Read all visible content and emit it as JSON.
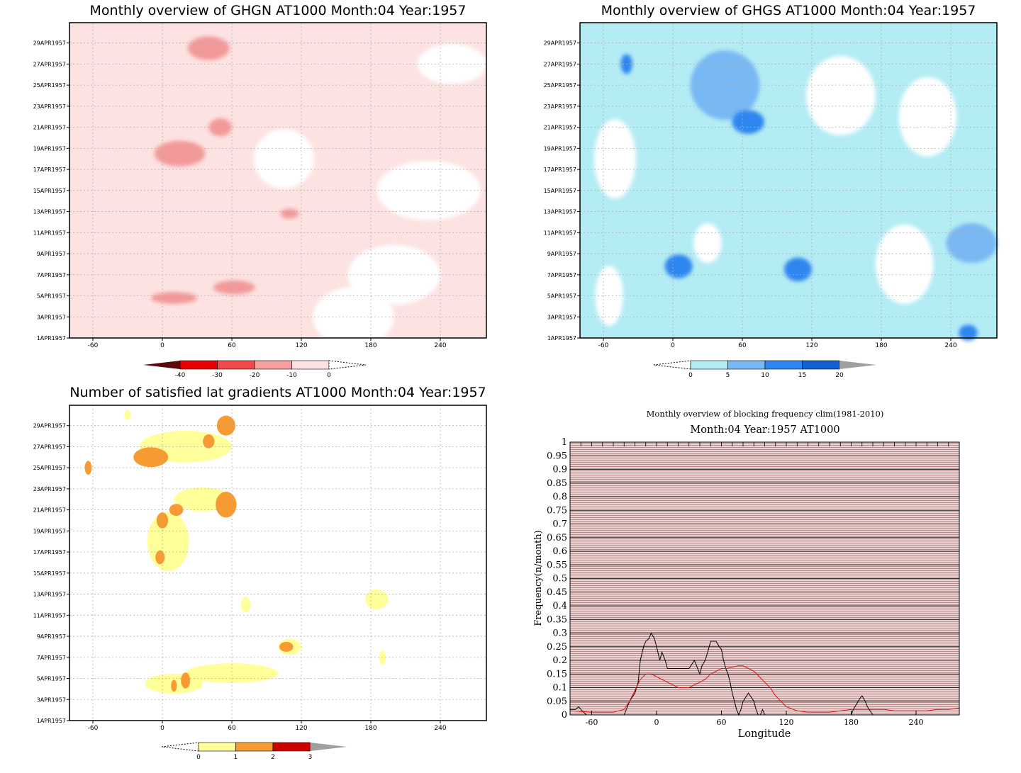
{
  "date_labels": [
    "1APR1957",
    "3APR1957",
    "5APR1957",
    "7APR1957",
    "9APR1957",
    "11APR1957",
    "13APR1957",
    "15APR1957",
    "17APR1957",
    "19APR1957",
    "21APR1957",
    "23APR1957",
    "25APR1957",
    "27APR1957",
    "29APR1957"
  ],
  "lon_ticks": [
    -60,
    0,
    60,
    120,
    180,
    240
  ],
  "chart_data": [
    {
      "type": "heatmap",
      "id": "ghgn",
      "title": "Monthly overview of GHGN AT1000 Month:04 Year:1957",
      "xlim": [
        -75,
        285
      ],
      "x_ticks": [
        "-60",
        "0",
        "60",
        "120",
        "180",
        "240"
      ],
      "colorbar": {
        "ticks": [
          "-40",
          "-30",
          "-20",
          "-10",
          "0"
        ],
        "colors": [
          "#5a0a0a",
          "#e60000",
          "#f24a4a",
          "#f7a0a0",
          "#fde2e2"
        ]
      },
      "blobs": [
        {
          "lon": 40,
          "day": 28.5,
          "rx": 18,
          "ry": 1.2,
          "value": -15
        },
        {
          "lon": 15,
          "day": 18.5,
          "rx": 22,
          "ry": 1.3,
          "value": -15
        },
        {
          "lon": 50,
          "day": 21,
          "rx": 10,
          "ry": 0.9,
          "value": -15
        },
        {
          "lon": 110,
          "day": 12.8,
          "rx": 8,
          "ry": 0.5,
          "value": -15
        },
        {
          "lon": 10,
          "day": 4.8,
          "rx": 20,
          "ry": 0.6,
          "value": -15
        },
        {
          "lon": 62,
          "day": 5.8,
          "rx": 18,
          "ry": 0.7,
          "value": -15
        }
      ]
    },
    {
      "type": "heatmap",
      "id": "ghgs",
      "title": "Monthly overview of GHGS AT1000 Month:04 Year:1957",
      "xlim": [
        -75,
        285
      ],
      "x_ticks": [
        "-60",
        "0",
        "60",
        "120",
        "180",
        "240"
      ],
      "colorbar": {
        "ticks": [
          "0",
          "5",
          "10",
          "15",
          "20"
        ],
        "colors": [
          "#b4ecf4",
          "#78b8f4",
          "#2f86ee",
          "#1560cf"
        ]
      },
      "blobs": [
        {
          "lon": 45,
          "day": 25,
          "rx": 30,
          "ry": 3.5,
          "value": 10
        },
        {
          "lon": 65,
          "day": 21.5,
          "rx": 14,
          "ry": 1.2,
          "value": 15
        },
        {
          "lon": -40,
          "day": 27,
          "rx": 5,
          "ry": 1,
          "value": 15
        },
        {
          "lon": 5,
          "day": 7.8,
          "rx": 12,
          "ry": 1.2,
          "value": 15
        },
        {
          "lon": 108,
          "day": 7.5,
          "rx": 12,
          "ry": 1.2,
          "value": 15
        },
        {
          "lon": 258,
          "day": 10,
          "rx": 22,
          "ry": 2,
          "value": 10
        },
        {
          "lon": 255,
          "day": 1.5,
          "rx": 8,
          "ry": 0.8,
          "value": 15
        }
      ]
    },
    {
      "type": "heatmap",
      "id": "latgrad",
      "title": "Number of satisfied lat gradients AT1000 Month:04 Year:1957",
      "xlim": [
        -75,
        285
      ],
      "x_ticks": [
        "-60",
        "0",
        "60",
        "120",
        "180",
        "240"
      ],
      "colorbar": {
        "ticks": [
          "0",
          "1",
          "2",
          "3"
        ],
        "colors": [
          "#ffff99",
          "#f69a31",
          "#cc0000"
        ]
      },
      "blobs": [
        {
          "lon": 55,
          "day": 29,
          "rx": 8,
          "ry": 1,
          "value": 2
        },
        {
          "lon": 40,
          "day": 27.5,
          "rx": 5,
          "ry": 0.7,
          "value": 2
        },
        {
          "lon": -10,
          "day": 26,
          "rx": 15,
          "ry": 1,
          "value": 2
        },
        {
          "lon": -64,
          "day": 25,
          "rx": 3,
          "ry": 0.7,
          "value": 2
        },
        {
          "lon": 55,
          "day": 21.5,
          "rx": 9,
          "ry": 1.3,
          "value": 2
        },
        {
          "lon": 12,
          "day": 21,
          "rx": 6,
          "ry": 0.6,
          "value": 2
        },
        {
          "lon": 0,
          "day": 20,
          "rx": 5,
          "ry": 0.8,
          "value": 2
        },
        {
          "lon": -2,
          "day": 16.5,
          "rx": 4,
          "ry": 0.7,
          "value": 2
        },
        {
          "lon": 107,
          "day": 8,
          "rx": 6,
          "ry": 0.5,
          "value": 2
        },
        {
          "lon": 20,
          "day": 4.8,
          "rx": 4,
          "ry": 0.8,
          "value": 2
        },
        {
          "lon": 10,
          "day": 4.3,
          "rx": 2.5,
          "ry": 0.6,
          "value": 2
        }
      ]
    },
    {
      "type": "line",
      "id": "freq",
      "title": "Monthly overview of blocking frequency clim(1981-2010)",
      "subtitle": "Month:04 Year:1957  AT1000",
      "xlabel": "Longitude",
      "ylabel": "Frequency(n/month)",
      "xlim": [
        -80,
        280
      ],
      "ylim": [
        0,
        1
      ],
      "x_ticks": [
        "-60",
        "0",
        "60",
        "120",
        "180",
        "240"
      ],
      "y_ticks": [
        "0",
        "0.05",
        "0.1",
        "0.15",
        "0.2",
        "0.25",
        "0.3",
        "0.35",
        "0.4",
        "0.45",
        "0.5",
        "0.55",
        "0.6",
        "0.65",
        "0.7",
        "0.75",
        "0.8",
        "0.85",
        "0.9",
        "0.95",
        "1"
      ],
      "series": [
        {
          "color": "#000000",
          "x": [
            -80,
            -75,
            -72,
            -70,
            -65,
            -60,
            -55,
            -50,
            -45,
            -40,
            -35,
            -30,
            -25,
            -20,
            -17,
            -15,
            -12,
            -10,
            -7,
            -5,
            -2,
            0,
            3,
            5,
            8,
            10,
            15,
            20,
            25,
            30,
            35,
            40,
            42,
            45,
            48,
            50,
            55,
            58,
            60,
            62,
            64,
            66,
            68,
            70,
            72,
            74,
            76,
            78,
            80,
            85,
            90,
            92,
            94,
            96,
            98,
            100,
            110,
            120,
            180,
            182,
            185,
            188,
            190,
            193,
            195,
            200,
            280
          ],
          "y": [
            0.02,
            0.02,
            0.03,
            0.02,
            0.0,
            0.0,
            0.0,
            0.0,
            0.0,
            0.0,
            0.0,
            0.0,
            0.05,
            0.08,
            0.12,
            0.2,
            0.25,
            0.27,
            0.28,
            0.3,
            0.28,
            0.25,
            0.2,
            0.23,
            0.2,
            0.17,
            0.17,
            0.17,
            0.17,
            0.17,
            0.2,
            0.15,
            0.18,
            0.2,
            0.24,
            0.27,
            0.27,
            0.25,
            0.24,
            0.2,
            0.17,
            0.15,
            0.12,
            0.08,
            0.05,
            0.02,
            0.0,
            0.02,
            0.05,
            0.08,
            0.05,
            0.02,
            0.0,
            0.0,
            0.02,
            0.0,
            0.0,
            0.0,
            0.0,
            0.02,
            0.04,
            0.06,
            0.07,
            0.05,
            0.03,
            0.0,
            0.0
          ]
        },
        {
          "color": "#e11111",
          "x": [
            -80,
            -60,
            -40,
            -30,
            -25,
            -20,
            -15,
            -10,
            -5,
            0,
            5,
            10,
            15,
            20,
            25,
            30,
            35,
            40,
            45,
            50,
            55,
            60,
            65,
            70,
            75,
            80,
            85,
            90,
            95,
            100,
            105,
            110,
            115,
            120,
            130,
            140,
            150,
            160,
            170,
            180,
            190,
            200,
            210,
            220,
            230,
            240,
            250,
            260,
            270,
            280
          ],
          "y": [
            0.015,
            0.01,
            0.01,
            0.02,
            0.05,
            0.09,
            0.13,
            0.15,
            0.15,
            0.14,
            0.13,
            0.12,
            0.11,
            0.1,
            0.1,
            0.1,
            0.11,
            0.12,
            0.13,
            0.15,
            0.16,
            0.17,
            0.17,
            0.175,
            0.18,
            0.18,
            0.17,
            0.16,
            0.14,
            0.12,
            0.1,
            0.07,
            0.05,
            0.03,
            0.015,
            0.01,
            0.01,
            0.01,
            0.015,
            0.02,
            0.02,
            0.02,
            0.02,
            0.015,
            0.015,
            0.015,
            0.015,
            0.02,
            0.02,
            0.025
          ]
        }
      ]
    }
  ]
}
